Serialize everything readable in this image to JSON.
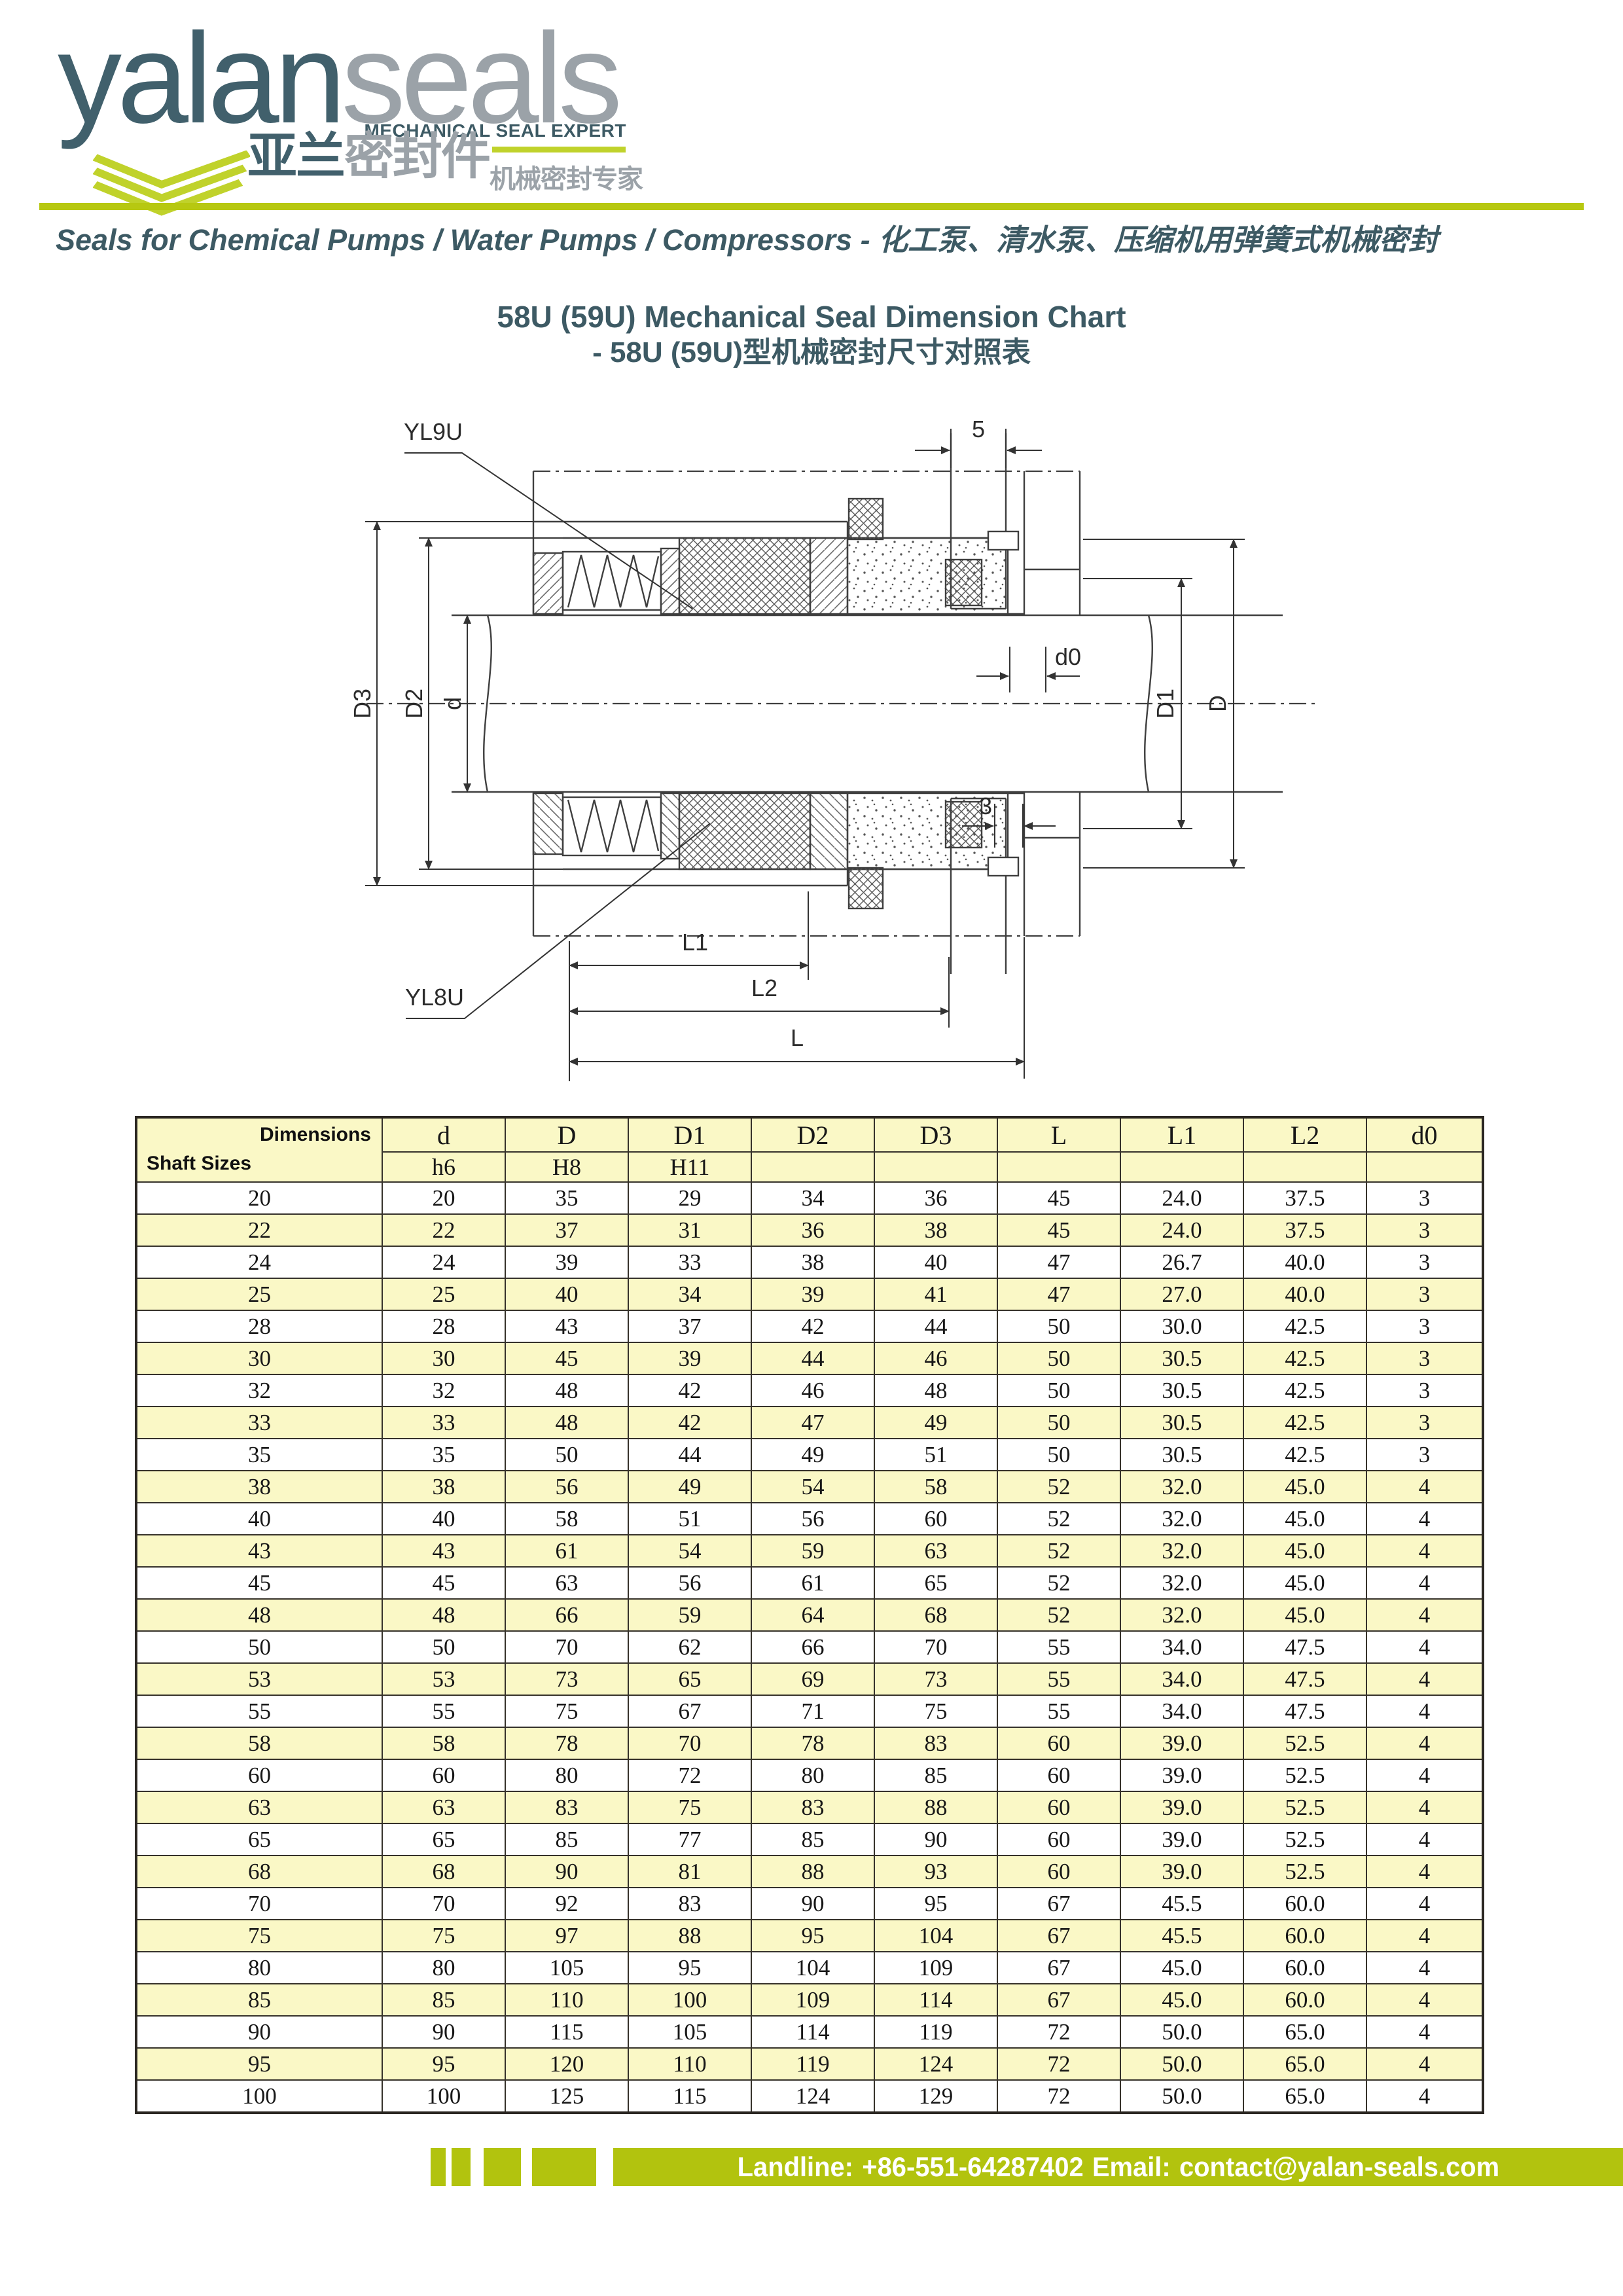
{
  "logo": {
    "brand_teal": "yalan",
    "brand_gray": "seals",
    "subtitle_en": "MECHANICAL SEAL EXPERT",
    "brand_cn_teal": "亚兰",
    "brand_cn_gray": "密封件",
    "subtitle_cn": "机械密封专家"
  },
  "tagline": {
    "en": "Seals for Chemical Pumps / Water Pumps / Compressors",
    "sep": " - ",
    "cn": "化工泵、清水泵、压缩机用弹簧式机械密封"
  },
  "title": {
    "line1": "58U (59U) Mechanical Seal Dimension Chart",
    "line2": "- 58U (59U)型机械密封尺寸对照表"
  },
  "drawing": {
    "label_top": "YL9U",
    "label_bottom": "YL8U",
    "dim_flange": "5",
    "dim_hole": "d0",
    "dim_step": "3",
    "dims_left": [
      "D3",
      "D2",
      "d"
    ],
    "dims_right": [
      "D1",
      "D"
    ],
    "dims_bottom": [
      "L1",
      "L2",
      "L"
    ]
  },
  "table": {
    "corner_top": "Dimensions",
    "corner_bottom": "Shaft Sizes",
    "columns": [
      "d",
      "D",
      "D1",
      "D2",
      "D3",
      "L",
      "L1",
      "L2",
      "d0"
    ],
    "tolerances": [
      "h6",
      "H8",
      "H11",
      "",
      "",
      "",
      "",
      "",
      ""
    ],
    "rows": [
      [
        "20",
        "20",
        "35",
        "29",
        "34",
        "36",
        "45",
        "24.0",
        "37.5",
        "3"
      ],
      [
        "22",
        "22",
        "37",
        "31",
        "36",
        "38",
        "45",
        "24.0",
        "37.5",
        "3"
      ],
      [
        "24",
        "24",
        "39",
        "33",
        "38",
        "40",
        "47",
        "26.7",
        "40.0",
        "3"
      ],
      [
        "25",
        "25",
        "40",
        "34",
        "39",
        "41",
        "47",
        "27.0",
        "40.0",
        "3"
      ],
      [
        "28",
        "28",
        "43",
        "37",
        "42",
        "44",
        "50",
        "30.0",
        "42.5",
        "3"
      ],
      [
        "30",
        "30",
        "45",
        "39",
        "44",
        "46",
        "50",
        "30.5",
        "42.5",
        "3"
      ],
      [
        "32",
        "32",
        "48",
        "42",
        "46",
        "48",
        "50",
        "30.5",
        "42.5",
        "3"
      ],
      [
        "33",
        "33",
        "48",
        "42",
        "47",
        "49",
        "50",
        "30.5",
        "42.5",
        "3"
      ],
      [
        "35",
        "35",
        "50",
        "44",
        "49",
        "51",
        "50",
        "30.5",
        "42.5",
        "3"
      ],
      [
        "38",
        "38",
        "56",
        "49",
        "54",
        "58",
        "52",
        "32.0",
        "45.0",
        "4"
      ],
      [
        "40",
        "40",
        "58",
        "51",
        "56",
        "60",
        "52",
        "32.0",
        "45.0",
        "4"
      ],
      [
        "43",
        "43",
        "61",
        "54",
        "59",
        "63",
        "52",
        "32.0",
        "45.0",
        "4"
      ],
      [
        "45",
        "45",
        "63",
        "56",
        "61",
        "65",
        "52",
        "32.0",
        "45.0",
        "4"
      ],
      [
        "48",
        "48",
        "66",
        "59",
        "64",
        "68",
        "52",
        "32.0",
        "45.0",
        "4"
      ],
      [
        "50",
        "50",
        "70",
        "62",
        "66",
        "70",
        "55",
        "34.0",
        "47.5",
        "4"
      ],
      [
        "53",
        "53",
        "73",
        "65",
        "69",
        "73",
        "55",
        "34.0",
        "47.5",
        "4"
      ],
      [
        "55",
        "55",
        "75",
        "67",
        "71",
        "75",
        "55",
        "34.0",
        "47.5",
        "4"
      ],
      [
        "58",
        "58",
        "78",
        "70",
        "78",
        "83",
        "60",
        "39.0",
        "52.5",
        "4"
      ],
      [
        "60",
        "60",
        "80",
        "72",
        "80",
        "85",
        "60",
        "39.0",
        "52.5",
        "4"
      ],
      [
        "63",
        "63",
        "83",
        "75",
        "83",
        "88",
        "60",
        "39.0",
        "52.5",
        "4"
      ],
      [
        "65",
        "65",
        "85",
        "77",
        "85",
        "90",
        "60",
        "39.0",
        "52.5",
        "4"
      ],
      [
        "68",
        "68",
        "90",
        "81",
        "88",
        "93",
        "60",
        "39.0",
        "52.5",
        "4"
      ],
      [
        "70",
        "70",
        "92",
        "83",
        "90",
        "95",
        "67",
        "45.5",
        "60.0",
        "4"
      ],
      [
        "75",
        "75",
        "97",
        "88",
        "95",
        "104",
        "67",
        "45.5",
        "60.0",
        "4"
      ],
      [
        "80",
        "80",
        "105",
        "95",
        "104",
        "109",
        "67",
        "45.0",
        "60.0",
        "4"
      ],
      [
        "85",
        "85",
        "110",
        "100",
        "109",
        "114",
        "67",
        "45.0",
        "60.0",
        "4"
      ],
      [
        "90",
        "90",
        "115",
        "105",
        "114",
        "119",
        "72",
        "50.0",
        "65.0",
        "4"
      ],
      [
        "95",
        "95",
        "120",
        "110",
        "119",
        "124",
        "72",
        "50.0",
        "65.0",
        "4"
      ],
      [
        "100",
        "100",
        "125",
        "115",
        "124",
        "129",
        "72",
        "50.0",
        "65.0",
        "4"
      ]
    ]
  },
  "footer": {
    "landline_label": "Landline:",
    "landline_value": "+86-551-64287402",
    "email_label": "Email:",
    "email_value": "contact@yalan-seals.com"
  },
  "colors": {
    "accent_teal": "#3d5a64",
    "accent_gray": "#9ba2a8",
    "lime_bright": "#c0d22b",
    "lime_bar": "#b2c30e",
    "table_yellow": "#faf8c6"
  }
}
